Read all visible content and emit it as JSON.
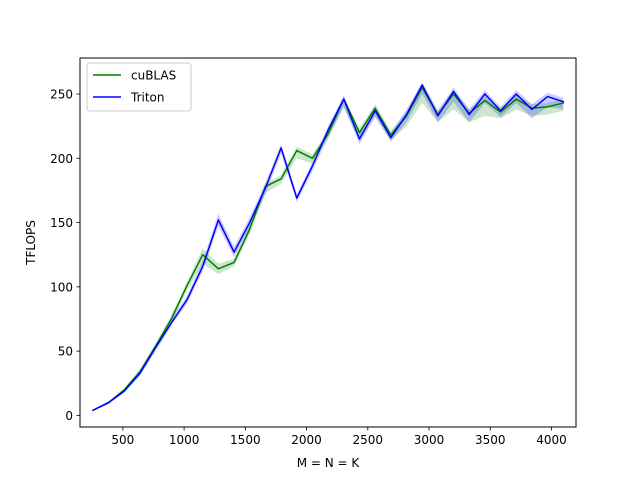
{
  "chart_data": {
    "type": "line",
    "xlabel": "M = N = K",
    "ylabel": "TFLOPS",
    "xlim": [
      150,
      4200
    ],
    "ylim": [
      -9,
      278
    ],
    "xticks": [
      500,
      1000,
      1500,
      2000,
      2500,
      3000,
      3500,
      4000
    ],
    "yticks": [
      0,
      50,
      100,
      150,
      200,
      250
    ],
    "grid": false,
    "legend_position": "upper-left",
    "x": [
      256,
      384,
      512,
      640,
      768,
      896,
      1024,
      1152,
      1280,
      1408,
      1536,
      1664,
      1792,
      1920,
      2048,
      2176,
      2304,
      2432,
      2560,
      2688,
      2816,
      2944,
      3072,
      3200,
      3328,
      3456,
      3584,
      3712,
      3840,
      3968,
      4096
    ],
    "series": [
      {
        "name": "cuBLAS",
        "color": "#008000",
        "values": [
          4,
          10,
          20,
          34,
          54,
          75,
          101,
          125,
          114,
          119,
          145,
          178,
          184,
          206,
          200,
          219,
          246,
          220,
          239,
          218,
          233,
          255,
          234,
          250,
          235,
          245,
          236,
          246,
          239,
          240,
          243
        ],
        "band_low": [
          3.5,
          9,
          18,
          31,
          51,
          72,
          97,
          118,
          110,
          116,
          141,
          173,
          180,
          200,
          196,
          215,
          240,
          214,
          233,
          214,
          225,
          243,
          228,
          238,
          228,
          233,
          231,
          238,
          233,
          234,
          237
        ],
        "band_high": [
          4.5,
          11,
          21,
          36,
          56,
          78,
          104,
          130,
          118,
          122,
          148,
          180,
          187,
          209,
          203,
          222,
          248,
          223,
          242,
          221,
          236,
          258,
          237,
          253,
          238,
          248,
          239,
          249,
          242,
          243,
          246
        ]
      },
      {
        "name": "Triton",
        "color": "#0000ff",
        "values": [
          4,
          10,
          19,
          33,
          53,
          72,
          90,
          116,
          152,
          127,
          150,
          177,
          208,
          169,
          194,
          222,
          246,
          215,
          237,
          216,
          234,
          257,
          233,
          252,
          234,
          250,
          237,
          250,
          238,
          248,
          244
        ],
        "band_low": [
          3.5,
          9,
          18,
          31,
          50,
          70,
          87,
          112,
          147,
          123,
          146,
          172,
          204,
          166,
          190,
          217,
          240,
          211,
          232,
          213,
          228,
          250,
          228,
          244,
          228,
          243,
          232,
          243,
          231,
          240,
          238
        ],
        "band_high": [
          4.5,
          11,
          20,
          35,
          55,
          75,
          93,
          120,
          157,
          131,
          154,
          181,
          211,
          172,
          197,
          225,
          249,
          219,
          240,
          220,
          238,
          259,
          237,
          255,
          238,
          253,
          240,
          253,
          242,
          251,
          247
        ]
      }
    ]
  }
}
